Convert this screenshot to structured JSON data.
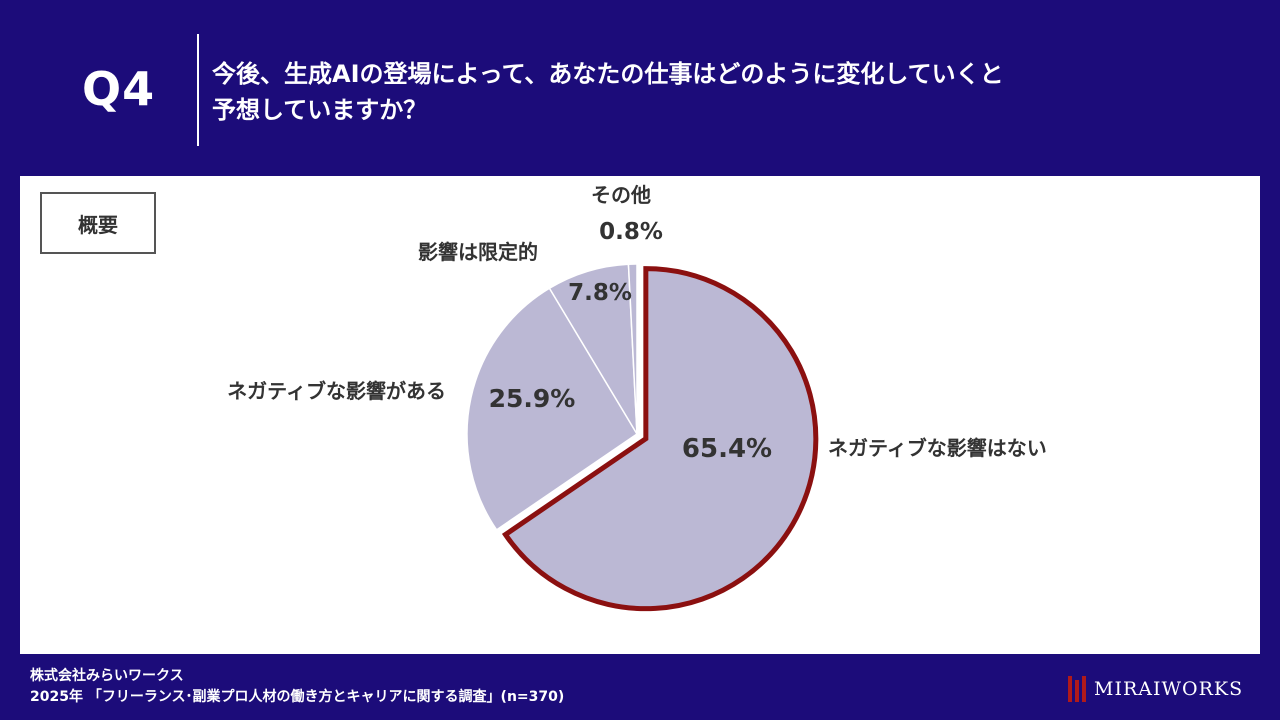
{
  "header": {
    "question_no": "Q4",
    "title_line1": "今後、生成AIの登場によって、あなたの仕事はどのように変化していくと",
    "title_line2": "予想していますか？"
  },
  "panel": {
    "summary_label": "概要"
  },
  "chart_data": {
    "type": "pie",
    "start": "12 o'clock, clockwise",
    "categories": [
      "ネガティブな影響はない",
      "ネガティブな影響がある",
      "影響は限定的",
      "その他"
    ],
    "values": [
      65.4,
      25.9,
      7.8,
      0.8
    ],
    "value_labels": [
      "65.4%",
      "25.9%",
      "7.8%",
      "0.8%"
    ],
    "highlighted_category": "ネガティブな影響はない",
    "colors": {
      "slice_fill": "#bbb8d4",
      "highlight_stroke": "#8b1010",
      "highlight_text": "#8b1010",
      "label_text": "#333333"
    }
  },
  "footer": {
    "company": "株式会社みらいワークス",
    "source": "2025年 「フリーランス･副業プロ人材の働き方とキャリアに関する調査」(n=370)"
  },
  "brand": {
    "name": "MIRAIWORKS"
  }
}
